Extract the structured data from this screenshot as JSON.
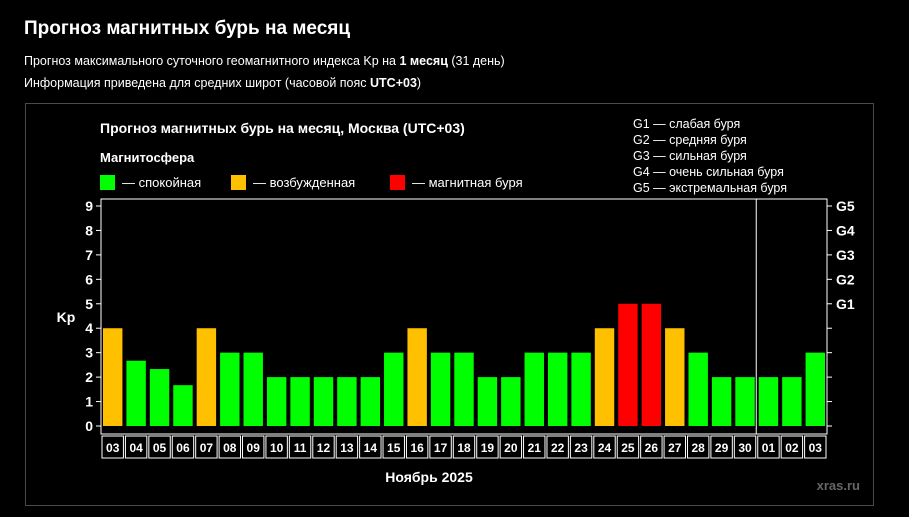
{
  "page": {
    "title": "Прогноз магнитных бурь на месяц",
    "line1_prefix": "Прогноз максимального суточного геомагнитного индекса Kp на ",
    "line1_bold": "1 месяц",
    "line1_suffix": " (31 день)",
    "line2_prefix": "Информация приведена для средних широт (часовой пояс ",
    "line2_bold": "UTC+03",
    "line2_suffix": ")"
  },
  "chart_data": {
    "type": "bar",
    "title": "Прогноз магнитных бурь на месяц, Москва (UTC+03)",
    "ylabel": "Kp",
    "xlabel": "Ноябрь 2025",
    "ylim": [
      0,
      9
    ],
    "yticks": [
      "0",
      "1",
      "2",
      "3",
      "4",
      "5",
      "6",
      "7",
      "8",
      "9"
    ],
    "gscale": [
      {
        "label": "G1",
        "kp": 5
      },
      {
        "label": "G2",
        "kp": 6
      },
      {
        "label": "G3",
        "kp": 7
      },
      {
        "label": "G4",
        "kp": 8
      },
      {
        "label": "G5",
        "kp": 9
      }
    ],
    "legend_title": "Магнитосфера",
    "legend": [
      {
        "label": "— спокойная",
        "color": "#00ff00"
      },
      {
        "label": "— возбужденная",
        "color": "#ffc000"
      },
      {
        "label": "— магнитная буря",
        "color": "#ff0000"
      }
    ],
    "storm_legend": [
      "G1 — слабая буря",
      "G2 — средняя буря",
      "G3 — сильная буря",
      "G4 — очень сильная буря",
      "G5 — экстремальная буря"
    ],
    "categories": [
      "03",
      "04",
      "05",
      "06",
      "07",
      "08",
      "09",
      "10",
      "11",
      "12",
      "13",
      "14",
      "15",
      "16",
      "17",
      "18",
      "19",
      "20",
      "21",
      "22",
      "23",
      "24",
      "25",
      "26",
      "27",
      "28",
      "29",
      "30",
      "01",
      "02",
      "03"
    ],
    "values": [
      4,
      2.67,
      2.33,
      1.67,
      4,
      3,
      3,
      2,
      2,
      2,
      2,
      2,
      3,
      4,
      3,
      3,
      2,
      2,
      3,
      3,
      3,
      4,
      5,
      5,
      4,
      3,
      2,
      2,
      2,
      2,
      3
    ],
    "month_divider_after_index": 27,
    "colors": {
      "quiet": "#00ff00",
      "active": "#ffc000",
      "storm": "#ff0000"
    },
    "watermark": "xras.ru"
  }
}
